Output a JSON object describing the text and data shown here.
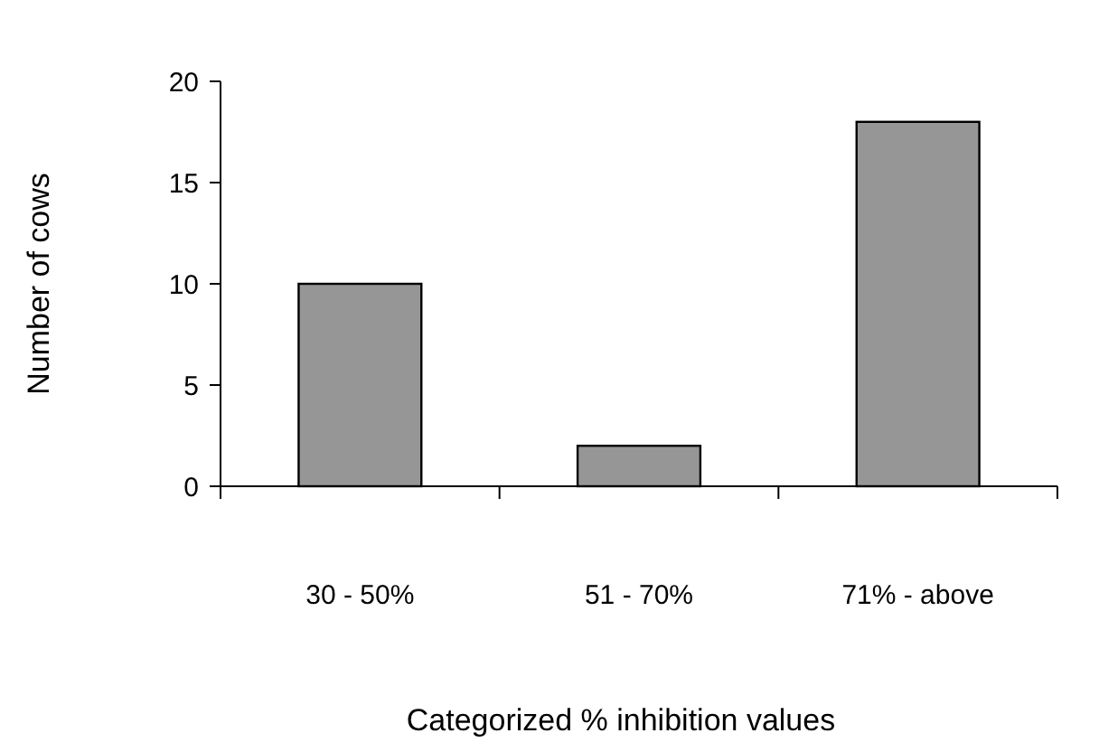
{
  "chart_data": {
    "type": "bar",
    "xlabel": "Categorized % inhibition values",
    "ylabel": "Number of cows",
    "categories": [
      "30 - 50%",
      "51 - 70%",
      "71% - above"
    ],
    "values": [
      10,
      2,
      18
    ],
    "color": "#969696",
    "ylim": [
      0,
      20
    ],
    "yticks": [
      0,
      5,
      10,
      15,
      20
    ],
    "grid": false
  }
}
